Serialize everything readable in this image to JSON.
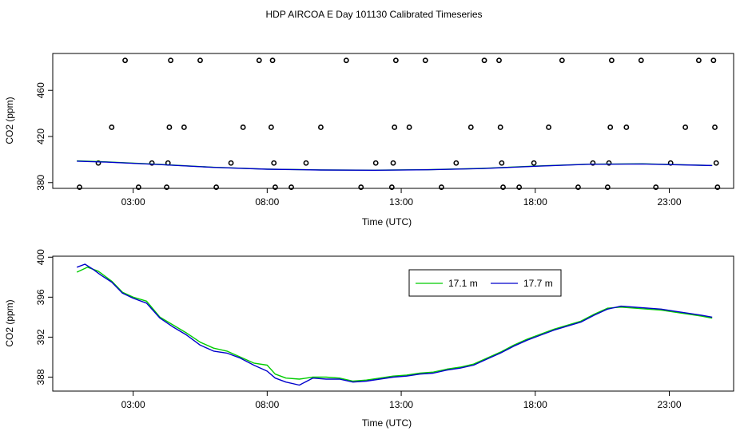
{
  "figure_title": "HDP AIRCOA E  Day 101130  Calibrated Timeseries",
  "colors": {
    "series_17_1": "#00cc00",
    "series_17_7": "#0000cc",
    "axes": "#000000"
  },
  "chart_data": [
    {
      "type": "scatter+line",
      "title": "HDP AIRCOA E  Day 101130  Calibrated Timeseries",
      "xlabel": "Time (UTC)",
      "ylabel": "CO2 (ppm)",
      "xlim": [
        0.0,
        25.4
      ],
      "ylim": [
        375,
        492
      ],
      "xticks": [
        3,
        8,
        13,
        18,
        23
      ],
      "xtick_labels": [
        "03:00",
        "08:00",
        "13:00",
        "18:00",
        "23:00"
      ],
      "yticks": [
        380,
        420,
        460
      ],
      "ytick_labels": [
        "380",
        "420",
        "460"
      ],
      "points": [
        [
          1.0,
          376
        ],
        [
          1.7,
          397
        ],
        [
          2.2,
          428
        ],
        [
          2.7,
          486
        ],
        [
          3.2,
          376
        ],
        [
          3.7,
          397
        ],
        [
          4.25,
          376
        ],
        [
          4.3,
          397
        ],
        [
          4.35,
          428
        ],
        [
          4.4,
          486
        ],
        [
          4.9,
          428
        ],
        [
          5.5,
          486
        ],
        [
          6.1,
          376
        ],
        [
          6.65,
          397
        ],
        [
          7.1,
          428
        ],
        [
          7.7,
          486
        ],
        [
          8.15,
          428
        ],
        [
          8.2,
          486
        ],
        [
          8.25,
          397
        ],
        [
          8.3,
          376
        ],
        [
          8.9,
          376
        ],
        [
          9.45,
          397
        ],
        [
          10.0,
          428
        ],
        [
          10.95,
          486
        ],
        [
          11.5,
          376
        ],
        [
          12.05,
          397
        ],
        [
          12.65,
          376
        ],
        [
          12.7,
          397
        ],
        [
          12.75,
          428
        ],
        [
          12.8,
          486
        ],
        [
          13.3,
          428
        ],
        [
          13.9,
          486
        ],
        [
          14.5,
          376
        ],
        [
          15.05,
          397
        ],
        [
          15.6,
          428
        ],
        [
          16.1,
          486
        ],
        [
          16.65,
          486
        ],
        [
          16.7,
          428
        ],
        [
          16.75,
          397
        ],
        [
          16.8,
          376
        ],
        [
          17.4,
          376
        ],
        [
          17.95,
          397
        ],
        [
          18.5,
          428
        ],
        [
          19.0,
          486
        ],
        [
          19.6,
          376
        ],
        [
          20.15,
          397
        ],
        [
          20.7,
          376
        ],
        [
          20.75,
          397
        ],
        [
          20.8,
          428
        ],
        [
          20.85,
          486
        ],
        [
          21.4,
          428
        ],
        [
          21.95,
          486
        ],
        [
          22.5,
          376
        ],
        [
          23.05,
          397
        ],
        [
          23.6,
          428
        ],
        [
          24.1,
          486
        ],
        [
          24.65,
          486
        ],
        [
          24.7,
          428
        ],
        [
          24.75,
          397
        ],
        [
          24.8,
          376
        ]
      ],
      "series": [
        {
          "name": "17.1 m",
          "x": [
            0.9,
            2,
            4,
            6,
            8,
            10,
            12,
            14,
            16,
            18,
            20,
            22,
            24.6
          ],
          "y": [
            398.8,
            398,
            395.8,
            393.3,
            391.7,
            391,
            390.8,
            391.2,
            392.3,
            394.3,
            396,
            396.3,
            394.9
          ]
        },
        {
          "name": "17.7 m",
          "x": [
            0.9,
            2,
            4,
            6,
            8,
            10,
            12,
            14,
            16,
            18,
            20,
            22,
            24.6
          ],
          "y": [
            398.6,
            397.8,
            395.6,
            393.2,
            391.6,
            390.9,
            390.7,
            391.1,
            392.2,
            394.2,
            395.9,
            396.2,
            394.8
          ]
        }
      ]
    },
    {
      "type": "line",
      "xlabel": "Time (UTC)",
      "ylabel": "CO2 (ppm)",
      "xlim": [
        0.0,
        25.4
      ],
      "ylim": [
        386.6,
        400.1
      ],
      "xticks": [
        3,
        8,
        13,
        18,
        23
      ],
      "xtick_labels": [
        "03:00",
        "08:00",
        "13:00",
        "18:00",
        "23:00"
      ],
      "yticks": [
        388,
        392,
        396,
        400
      ],
      "ytick_labels": [
        "388",
        "392",
        "396",
        "400"
      ],
      "legend": [
        "17.1 m",
        "17.7 m"
      ],
      "legend_position": "top-right",
      "series": [
        {
          "name": "17.1 m",
          "x": [
            0.9,
            1.3,
            1.7,
            2.2,
            2.6,
            3.0,
            3.5,
            4.0,
            4.5,
            5.0,
            5.5,
            6.0,
            6.5,
            7.0,
            7.5,
            8.0,
            8.3,
            8.7,
            9.2,
            9.7,
            10.2,
            10.7,
            11.2,
            11.7,
            12.2,
            12.7,
            13.2,
            13.7,
            14.2,
            14.7,
            15.2,
            15.7,
            16.2,
            16.7,
            17.2,
            17.7,
            18.2,
            18.7,
            19.2,
            19.7,
            20.2,
            20.7,
            21.2,
            21.7,
            22.2,
            22.7,
            23.2,
            23.7,
            24.2,
            24.6
          ],
          "y": [
            398.5,
            399.0,
            398.6,
            397.6,
            396.5,
            396.0,
            395.6,
            394.0,
            393.2,
            392.4,
            391.5,
            390.9,
            390.6,
            390.0,
            389.4,
            389.2,
            388.3,
            387.9,
            387.8,
            388.0,
            388.0,
            387.9,
            387.6,
            387.7,
            387.9,
            388.1,
            388.2,
            388.4,
            388.5,
            388.8,
            389.0,
            389.3,
            389.9,
            390.5,
            391.2,
            391.8,
            392.3,
            392.8,
            393.2,
            393.6,
            394.3,
            394.9,
            395.0,
            394.9,
            394.8,
            394.7,
            394.5,
            394.3,
            394.1,
            393.9
          ]
        },
        {
          "name": "17.7 m",
          "x": [
            0.9,
            1.2,
            1.5,
            1.8,
            2.2,
            2.6,
            3.0,
            3.5,
            4.0,
            4.5,
            5.0,
            5.5,
            6.0,
            6.5,
            7.0,
            7.5,
            8.0,
            8.3,
            8.7,
            9.2,
            9.7,
            10.2,
            10.7,
            11.2,
            11.7,
            12.2,
            12.7,
            13.2,
            13.7,
            14.2,
            14.7,
            15.2,
            15.7,
            16.2,
            16.7,
            17.2,
            17.7,
            18.2,
            18.7,
            19.2,
            19.7,
            20.2,
            20.7,
            21.2,
            21.7,
            22.2,
            22.7,
            23.2,
            23.7,
            24.2,
            24.6
          ],
          "y": [
            399.0,
            399.3,
            398.8,
            398.2,
            397.5,
            396.4,
            395.9,
            395.4,
            393.9,
            393.0,
            392.2,
            391.2,
            390.6,
            390.4,
            389.9,
            389.2,
            388.6,
            387.9,
            387.5,
            387.2,
            387.9,
            387.8,
            387.8,
            387.5,
            387.6,
            387.8,
            388.0,
            388.1,
            388.3,
            388.4,
            388.7,
            388.9,
            389.2,
            389.8,
            390.4,
            391.1,
            391.7,
            392.2,
            392.7,
            393.1,
            393.5,
            394.2,
            394.8,
            395.1,
            395.0,
            394.9,
            394.8,
            394.6,
            394.4,
            394.2,
            394.0
          ]
        }
      ]
    }
  ]
}
